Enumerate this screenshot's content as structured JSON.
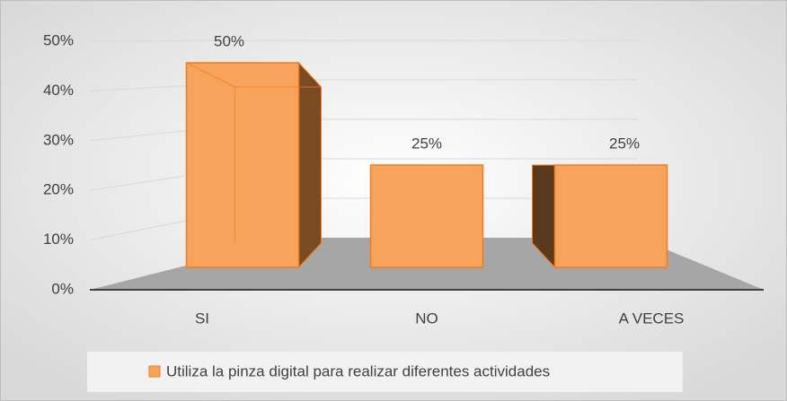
{
  "chart_data": {
    "type": "bar3d",
    "categories": [
      "SI",
      "NO",
      "A VECES"
    ],
    "series": [
      {
        "name": "Utiliza la pinza digital para realizar diferentes actividades",
        "color": "#f7a35c",
        "values": [
          50,
          25,
          25
        ],
        "value_labels": [
          "50%",
          "25%",
          "25%"
        ]
      }
    ],
    "ylim": [
      0,
      50
    ],
    "yticks": [
      {
        "value": 0,
        "label": "0%"
      },
      {
        "value": 10,
        "label": "10%"
      },
      {
        "value": 20,
        "label": "20%"
      },
      {
        "value": 30,
        "label": "30%"
      },
      {
        "value": 40,
        "label": "40%"
      },
      {
        "value": 50,
        "label": "50%"
      }
    ],
    "grid": true,
    "legend": "bottom"
  }
}
